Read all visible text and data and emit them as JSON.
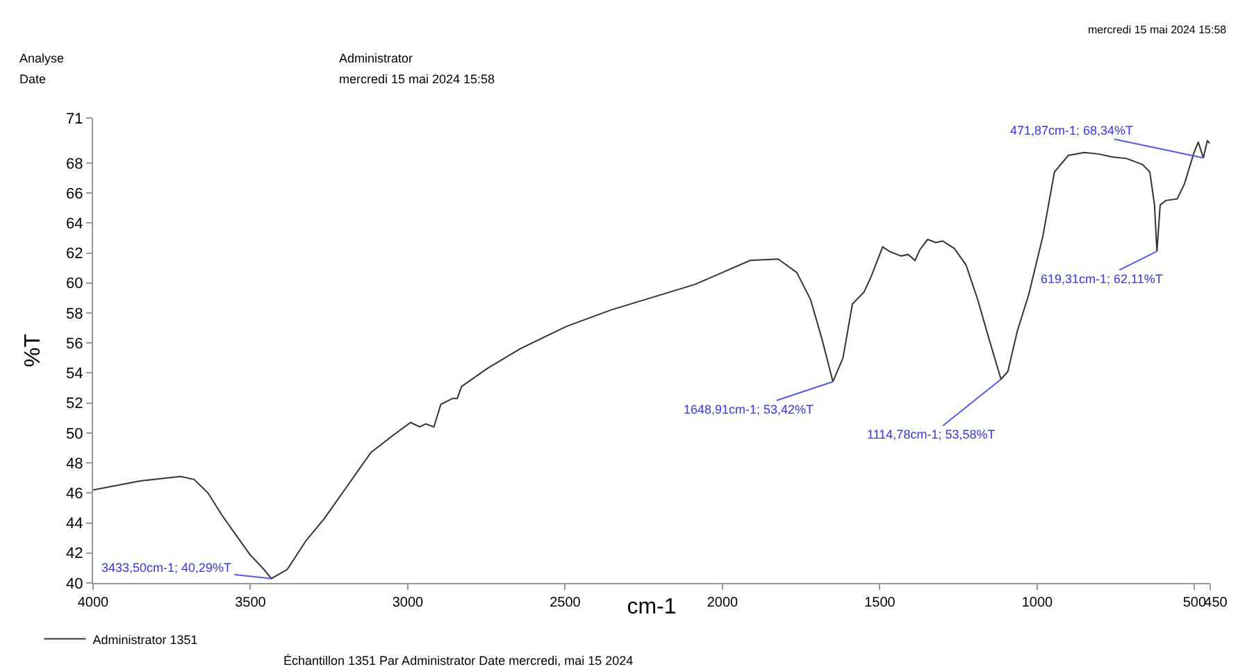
{
  "chart_data": {
    "type": "line",
    "xlabel": "cm-1",
    "ylabel": "%T",
    "xlim": [
      4000,
      450
    ],
    "xticks": [
      4000,
      3500,
      3000,
      2500,
      2000,
      1500,
      1000,
      500,
      {
        "value": 450,
        "label": "450"
      }
    ],
    "ylim": [
      40,
      71
    ],
    "yticks": [
      40,
      42,
      44,
      46,
      48,
      50,
      52,
      54,
      56,
      58,
      60,
      62,
      64,
      66,
      68,
      71
    ],
    "grid": false,
    "legend": "bottom left",
    "marker": "none",
    "line_style": "solid",
    "series": [
      {
        "name": "Administrator 1351",
        "color": "#333333",
        "x": [
          4000,
          3850,
          3723,
          3679,
          3635,
          3590,
          3546,
          3502,
          3457,
          3433.5,
          3383,
          3324,
          3265,
          3191,
          3117,
          3043,
          2991,
          2962,
          2943,
          2917,
          2895,
          2858,
          2843,
          2829,
          2747,
          2644,
          2496,
          2354,
          2088,
          1912,
          1823,
          1764,
          1720,
          1683,
          1648.9,
          1617,
          1587,
          1550,
          1528,
          1491,
          1469,
          1432,
          1410,
          1388,
          1373,
          1348,
          1322,
          1300,
          1263,
          1226,
          1189,
          1152,
          1114.8,
          1093,
          1063,
          1027,
          982,
          945,
          901,
          850,
          805,
          761,
          716,
          665,
          642,
          627,
          619.3,
          609,
          591,
          555,
          532,
          503,
          488,
          471.87,
          459,
          452
        ],
        "values": [
          46.2,
          46.8,
          47.1,
          46.9,
          46.0,
          44.5,
          43.2,
          41.9,
          40.9,
          40.29,
          40.9,
          42.8,
          44.3,
          46.5,
          48.7,
          49.9,
          50.7,
          50.4,
          50.6,
          50.4,
          51.9,
          52.3,
          52.3,
          53.1,
          54.3,
          55.6,
          57.1,
          58.2,
          59.9,
          61.5,
          61.6,
          60.7,
          58.9,
          56.2,
          53.42,
          55.0,
          58.6,
          59.4,
          60.4,
          62.4,
          62.1,
          61.8,
          61.9,
          61.5,
          62.2,
          62.9,
          62.7,
          62.8,
          62.3,
          61.2,
          58.9,
          56.2,
          53.58,
          54.1,
          56.8,
          59.2,
          63.1,
          67.4,
          68.5,
          68.7,
          68.6,
          68.4,
          68.3,
          67.9,
          67.4,
          65.2,
          62.11,
          65.2,
          65.5,
          65.6,
          66.6,
          68.6,
          69.4,
          68.34,
          69.5,
          69.3
        ]
      }
    ],
    "annotations": [
      "Analyse",
      "Date",
      "Administrator",
      "mercredi 15 mai 2024 15:58",
      "mercredi 15 mai 2024 15:58",
      "Échantillon 1351 Par Administrator Date mercredi, mai 15 2024",
      {
        "text": "3433,50cm-1; 40,29%T",
        "x": 3433.5,
        "y": 40.29
      },
      {
        "text": "1648,91cm-1; 53,42%T",
        "x": 1648.91,
        "y": 53.42
      },
      {
        "text": "1114,78cm-1; 53,58%T",
        "x": 1114.78,
        "y": 53.58
      },
      {
        "text": "619,31cm-1; 62,11%T",
        "x": 619.31,
        "y": 62.11
      },
      {
        "text": "471,87cm-1; 68,34%T",
        "x": 471.87,
        "y": 68.34
      }
    ]
  }
}
